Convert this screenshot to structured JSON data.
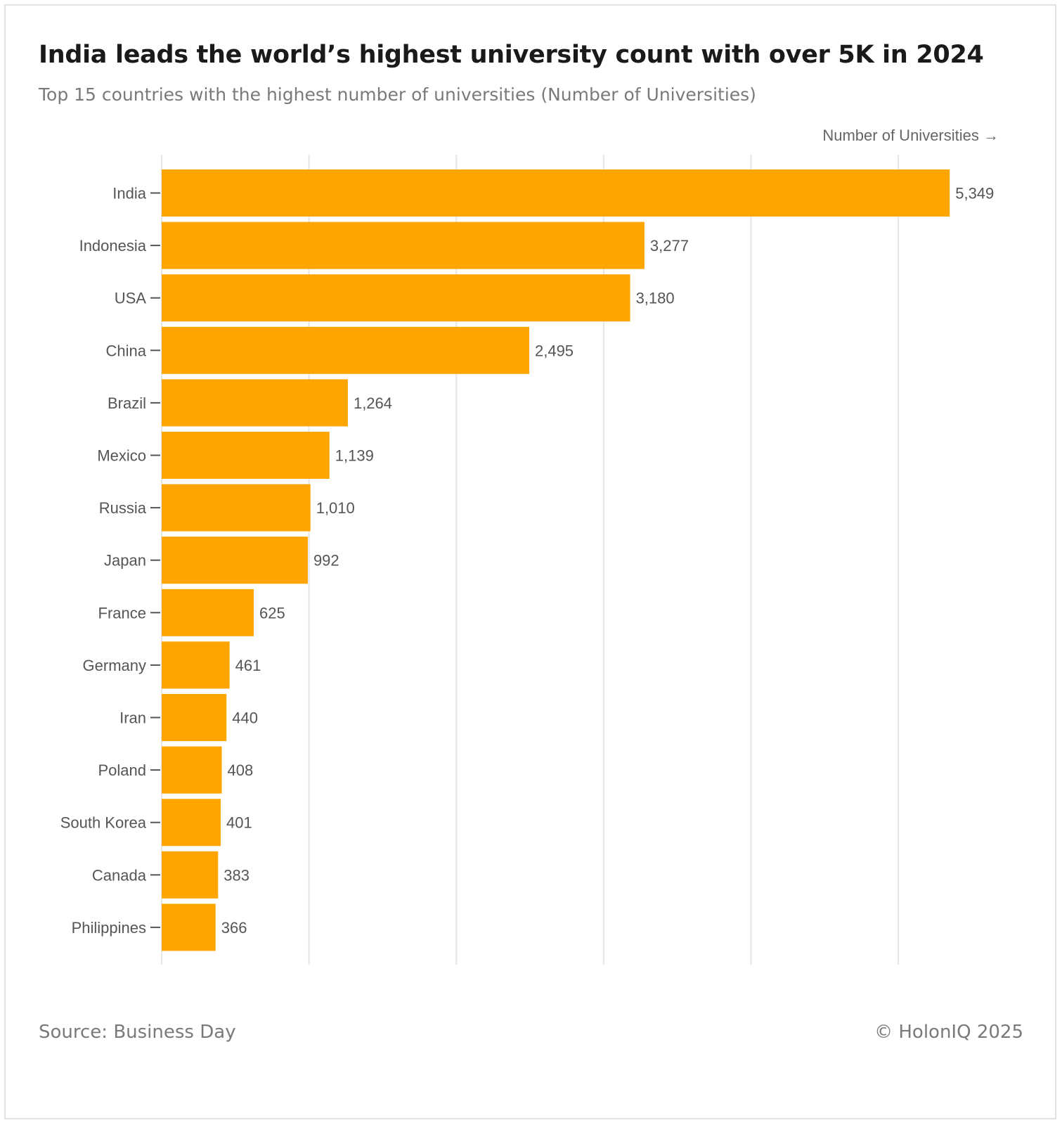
{
  "header": {
    "title": "India leads the world’s highest university count with over 5K in 2024",
    "subtitle": "Top 15 countries with the highest number of universities (Number of Universities)"
  },
  "footer": {
    "source": "Source: Business Day",
    "copyright": "© HolonIQ 2025"
  },
  "chart_data": {
    "type": "bar",
    "orientation": "horizontal",
    "title": "India leads the world’s highest university count with over 5K in 2024",
    "subtitle": "Top 15 countries with the highest number of universities (Number of Universities)",
    "xlabel": "Number of Universities →",
    "ylabel": "",
    "xlim": [
      0,
      5500
    ],
    "grid": true,
    "bar_color": "#ffa500",
    "categories": [
      "India",
      "Indonesia",
      "USA",
      "China",
      "Brazil",
      "Mexico",
      "Russia",
      "Japan",
      "France",
      "Germany",
      "Iran",
      "Poland",
      "South Korea",
      "Canada",
      "Philippines"
    ],
    "values": [
      5349,
      3277,
      3180,
      2495,
      1264,
      1139,
      1010,
      992,
      625,
      461,
      440,
      408,
      401,
      383,
      366
    ],
    "value_labels": [
      "5,349",
      "3,277",
      "3,180",
      "2,495",
      "1,264",
      "1,139",
      "1,010",
      "992",
      "625",
      "461",
      "440",
      "408",
      "401",
      "383",
      "366"
    ]
  }
}
